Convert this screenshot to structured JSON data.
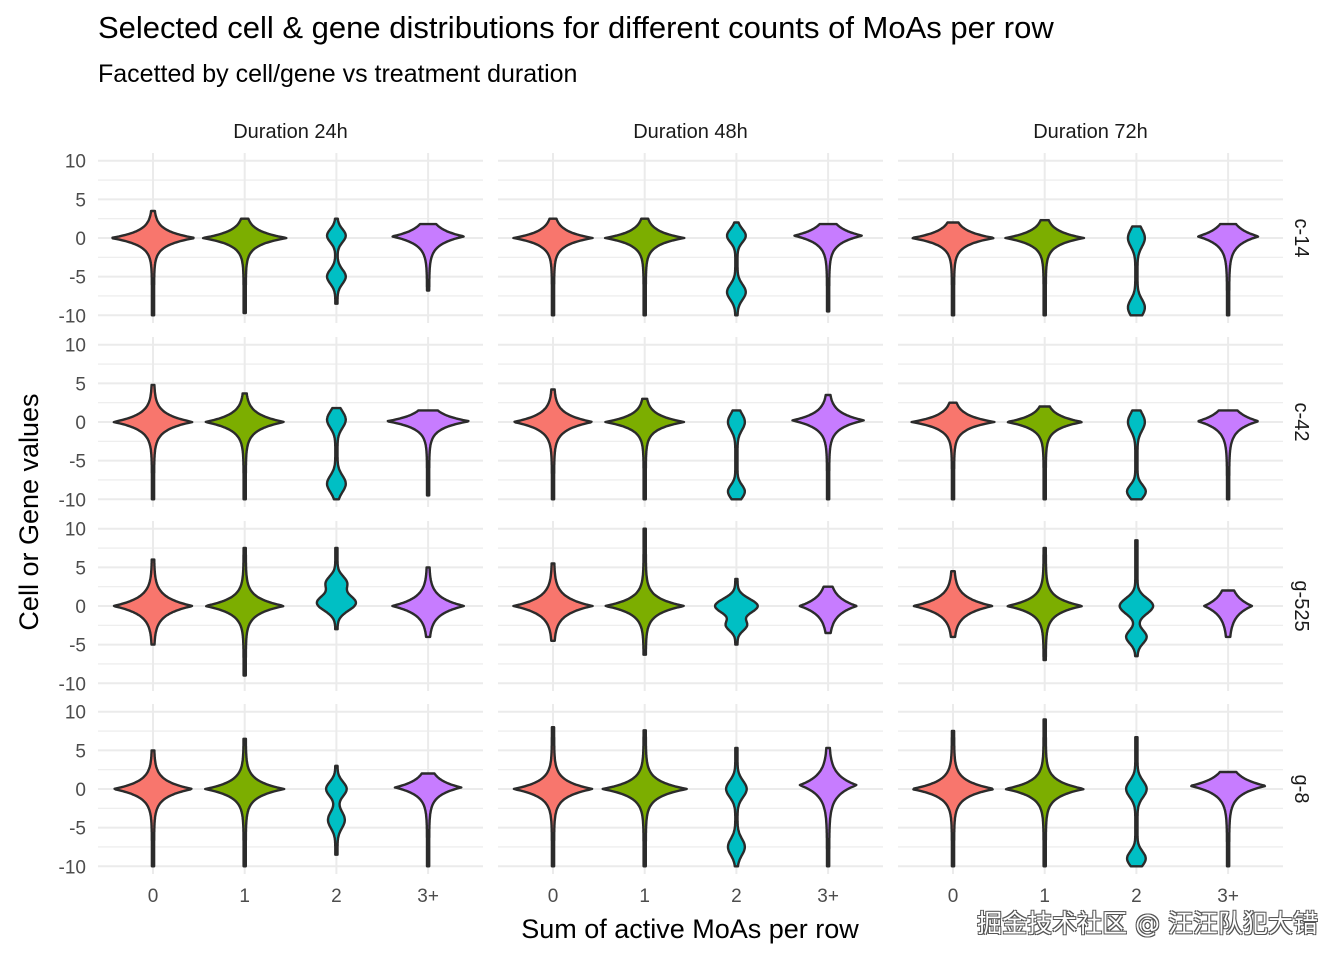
{
  "chart_data": {
    "type": "violin",
    "title": "Selected cell & gene distributions for different counts of MoAs per row",
    "subtitle": "Facetted by cell/gene vs treatment duration",
    "xlabel": "Sum of active MoAs per row",
    "ylabel": "Cell or Gene values",
    "categories": [
      "0",
      "1",
      "2",
      "3+"
    ],
    "colors": [
      "#F8766D",
      "#7CAE00",
      "#00BFC4",
      "#C77CFF"
    ],
    "yticks": [
      10,
      5,
      0,
      -5,
      -10
    ],
    "ylim": [
      -11,
      11
    ],
    "col_facets": [
      "Duration 24h",
      "Duration 48h",
      "Duration 72h"
    ],
    "row_facets": [
      "c-14",
      "c-42",
      "g-525",
      "g-8"
    ],
    "violin_format": "[min, max, [[mode_center, relative_halfwidth, spread, shape_exponent], ...]]",
    "panels": [
      [
        [
          [
            -10,
            3.5,
            [
              [
                0,
                0.45,
                0.9,
                1
              ]
            ]
          ],
          [
            -9.7,
            2.5,
            [
              [
                0,
                0.45,
                0.9,
                1
              ]
            ]
          ],
          [
            -8.5,
            2.5,
            [
              [
                0.3,
                0.09,
                1.2,
                2
              ],
              [
                -5,
                0.09,
                1.3,
                2
              ]
            ]
          ],
          [
            -6.8,
            1.8,
            [
              [
                0.2,
                0.38,
                1.0,
                1
              ]
            ]
          ]
        ],
        [
          [
            -10,
            2.5,
            [
              [
                0,
                0.42,
                0.9,
                1
              ]
            ]
          ],
          [
            -10,
            2.5,
            [
              [
                0,
                0.42,
                0.9,
                1
              ]
            ]
          ],
          [
            -10,
            2,
            [
              [
                0.3,
                0.09,
                1.2,
                2
              ],
              [
                -7,
                0.09,
                1.4,
                2
              ]
            ]
          ],
          [
            -9.5,
            1.8,
            [
              [
                0.3,
                0.36,
                1.0,
                1
              ]
            ]
          ]
        ],
        [
          [
            -10,
            2,
            [
              [
                0,
                0.44,
                0.9,
                1
              ]
            ]
          ],
          [
            -10,
            2.3,
            [
              [
                0,
                0.42,
                0.9,
                1
              ]
            ]
          ],
          [
            -10,
            1.5,
            [
              [
                0,
                0.08,
                1.6,
                2
              ],
              [
                -9,
                0.08,
                1.5,
                2
              ]
            ]
          ],
          [
            -10,
            1.8,
            [
              [
                0.2,
                0.32,
                1.1,
                1
              ]
            ]
          ]
        ]
      ],
      [
        [
          [
            -10,
            4.8,
            [
              [
                0,
                0.42,
                1.0,
                1
              ]
            ]
          ],
          [
            -10,
            3.7,
            [
              [
                0,
                0.42,
                1.0,
                1
              ]
            ]
          ],
          [
            -10,
            1.8,
            [
              [
                0.3,
                0.09,
                1.5,
                2
              ],
              [
                -8,
                0.09,
                1.5,
                2
              ]
            ]
          ],
          [
            -9.5,
            1.5,
            [
              [
                0.1,
                0.44,
                0.9,
                1
              ]
            ]
          ]
        ],
        [
          [
            -10,
            4.2,
            [
              [
                0,
                0.42,
                1.0,
                1
              ]
            ]
          ],
          [
            -10,
            3,
            [
              [
                0,
                0.42,
                0.9,
                1
              ]
            ]
          ],
          [
            -10,
            1.5,
            [
              [
                0,
                0.08,
                1.5,
                2
              ],
              [
                -9,
                0.08,
                1.2,
                2
              ]
            ]
          ],
          [
            -10,
            3.5,
            [
              [
                0.2,
                0.38,
                1.0,
                1
              ]
            ]
          ]
        ],
        [
          [
            -10,
            2.5,
            [
              [
                0,
                0.44,
                0.9,
                1
              ]
            ]
          ],
          [
            -10,
            2,
            [
              [
                0,
                0.4,
                0.9,
                1
              ]
            ]
          ],
          [
            -10,
            1.5,
            [
              [
                0,
                0.08,
                1.6,
                2
              ],
              [
                -9,
                0.09,
                1.2,
                2
              ]
            ]
          ],
          [
            -10,
            1.5,
            [
              [
                0.1,
                0.32,
                1.1,
                1
              ]
            ]
          ]
        ]
      ],
      [
        [
          [
            -5,
            6,
            [
              [
                0,
                0.42,
                1.1,
                1
              ]
            ]
          ],
          [
            -9,
            7.5,
            [
              [
                0,
                0.42,
                1.0,
                1
              ]
            ]
          ],
          [
            -3,
            7.5,
            [
              [
                0.4,
                0.2,
                1.4,
                2
              ],
              [
                3,
                0.1,
                1.2,
                2
              ]
            ]
          ],
          [
            -4,
            5,
            [
              [
                0,
                0.38,
                1.1,
                1
              ]
            ]
          ]
        ],
        [
          [
            -4.5,
            5.5,
            [
              [
                0,
                0.42,
                1.1,
                1
              ]
            ]
          ],
          [
            -6.3,
            10,
            [
              [
                0,
                0.42,
                1.0,
                1
              ]
            ]
          ],
          [
            -5,
            3.5,
            [
              [
                0,
                0.22,
                1.3,
                2
              ],
              [
                -2.5,
                0.1,
                1.0,
                2
              ]
            ]
          ],
          [
            -3.5,
            2.5,
            [
              [
                0,
                0.3,
                1.2,
                1
              ]
            ]
          ]
        ],
        [
          [
            -4,
            4.5,
            [
              [
                0,
                0.42,
                1.1,
                1
              ]
            ]
          ],
          [
            -7,
            7.5,
            [
              [
                0,
                0.4,
                1.0,
                1
              ]
            ]
          ],
          [
            -6.5,
            8.5,
            [
              [
                0,
                0.17,
                1.4,
                2
              ],
              [
                -4,
                0.1,
                1.2,
                2
              ]
            ]
          ],
          [
            -4,
            2,
            [
              [
                0,
                0.25,
                1.3,
                1
              ]
            ]
          ]
        ]
      ],
      [
        [
          [
            -10,
            5,
            [
              [
                0,
                0.42,
                1.0,
                1
              ]
            ]
          ],
          [
            -10,
            6.5,
            [
              [
                0,
                0.42,
                1.0,
                1
              ]
            ]
          ],
          [
            -8.5,
            3,
            [
              [
                0,
                0.1,
                1.3,
                2
              ],
              [
                -4,
                0.08,
                1.5,
                2
              ]
            ]
          ],
          [
            -10,
            2,
            [
              [
                0.2,
                0.35,
                1.0,
                1
              ]
            ]
          ]
        ],
        [
          [
            -10,
            8,
            [
              [
                0,
                0.42,
                1.0,
                1
              ]
            ]
          ],
          [
            -10,
            7.6,
            [
              [
                0,
                0.45,
                1.0,
                1
              ]
            ]
          ],
          [
            -10,
            5.3,
            [
              [
                0,
                0.1,
                1.5,
                2
              ],
              [
                -7.5,
                0.08,
                1.5,
                2
              ]
            ]
          ],
          [
            -10,
            5.3,
            [
              [
                0.5,
                0.3,
                1.3,
                1
              ]
            ]
          ]
        ],
        [
          [
            -10,
            7.5,
            [
              [
                0,
                0.44,
                1.0,
                1
              ]
            ]
          ],
          [
            -10,
            9,
            [
              [
                0,
                0.42,
                1.0,
                1
              ]
            ]
          ],
          [
            -10,
            6.7,
            [
              [
                0,
                0.1,
                1.5,
                2
              ],
              [
                -9,
                0.09,
                1.3,
                2
              ]
            ]
          ],
          [
            -10,
            2.2,
            [
              [
                0.4,
                0.4,
                1.1,
                1
              ]
            ]
          ]
        ]
      ]
    ]
  },
  "watermark": "掘金技术社区 @ 汪汪队犯大错"
}
